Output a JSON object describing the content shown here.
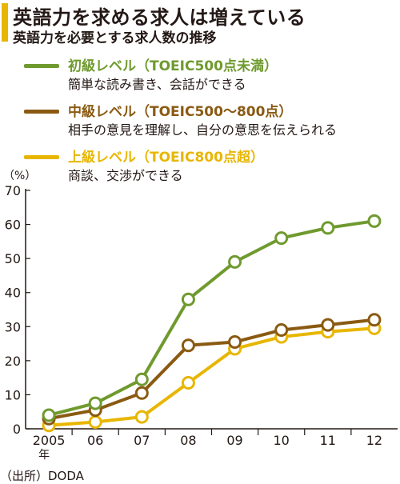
{
  "header": {
    "title": "英語力を求める求人は増えている",
    "subtitle": "英語力を必要とする求人数の推移"
  },
  "legend": [
    {
      "name": "初級レベル（TOEIC500点未満）",
      "desc": "簡単な読み書き、会話ができる",
      "color": "#6f9a2e"
    },
    {
      "name": "中級レベル（TOEIC500〜800点）",
      "desc": "相手の意見を理解し、自分の意思を伝えられる",
      "color": "#8a5a12"
    },
    {
      "name": "上級レベル（TOEIC800点超）",
      "desc": "商談、交渉ができる",
      "color": "#e8b600"
    }
  ],
  "source": "（出所）DODA",
  "chart_data": {
    "type": "line",
    "y_unit": "（%）",
    "categories": [
      "2005年",
      "06",
      "07",
      "08",
      "09",
      "10",
      "11",
      "12"
    ],
    "ylim": [
      0,
      70
    ],
    "yticks": [
      0,
      10,
      20,
      30,
      40,
      50,
      60,
      70
    ],
    "grid": false,
    "series": [
      {
        "name": "初級レベル（TOEIC500点未満）",
        "color": "#6f9a2e",
        "values": [
          4,
          7.5,
          14.5,
          38,
          49,
          56,
          59,
          61
        ]
      },
      {
        "name": "中級レベル（TOEIC500〜800点）",
        "color": "#8a5a12",
        "values": [
          3,
          5.5,
          10.5,
          24.5,
          25.5,
          29,
          30.5,
          32
        ]
      },
      {
        "name": "上級レベル（TOEIC800点超）",
        "color": "#e8b600",
        "values": [
          1,
          2,
          3.5,
          13.5,
          23.5,
          27,
          28.5,
          29.5
        ]
      }
    ]
  }
}
